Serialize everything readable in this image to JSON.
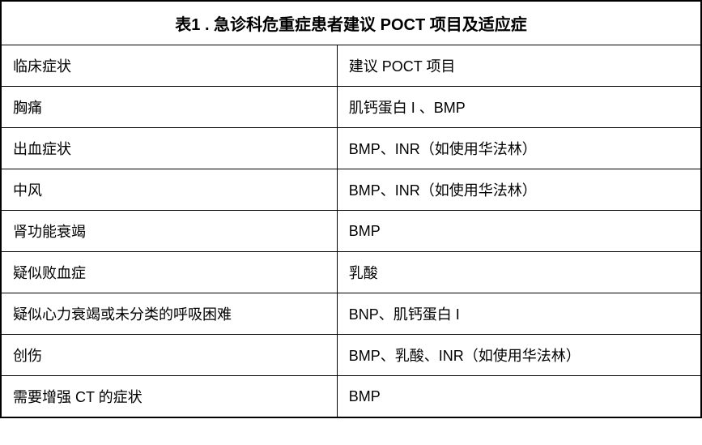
{
  "title": "表1 . 急诊科危重症患者建议 POCT 项目及适应症",
  "columns": [
    "临床症状",
    "建议 POCT 项目"
  ],
  "rows": [
    [
      "胸痛",
      "肌钙蛋白 I 、BMP"
    ],
    [
      "出血症状",
      "BMP、INR（如使用华法林）"
    ],
    [
      "中风",
      "BMP、INR（如使用华法林）"
    ],
    [
      "肾功能衰竭",
      "BMP"
    ],
    [
      "疑似败血症",
      "乳酸"
    ],
    [
      "疑似心力衰竭或未分类的呼吸困难",
      "BNP、肌钙蛋白 I"
    ],
    [
      "创伤",
      "BMP、乳酸、INR（如使用华法林）"
    ],
    [
      "需要增强 CT 的症状",
      "BMP"
    ]
  ],
  "styling": {
    "font_family": "Microsoft YaHei",
    "title_fontsize": 20,
    "title_fontweight": "bold",
    "cell_fontsize": 18,
    "border_color": "#000000",
    "outer_border_width": 2,
    "inner_border_width": 1,
    "background_color": "#ffffff",
    "text_color": "#000000",
    "col_left_width_pct": 48,
    "col_right_width_pct": 52,
    "cell_padding_v": 12,
    "cell_padding_h": 14
  }
}
